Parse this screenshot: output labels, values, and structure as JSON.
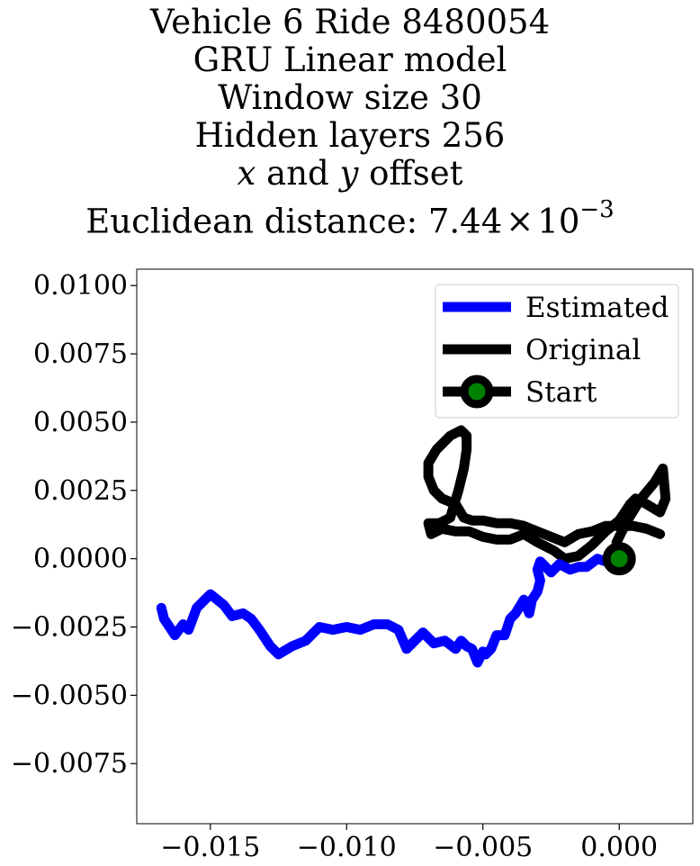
{
  "chart_data": {
    "type": "line",
    "title_lines": [
      "Vehicle 6 Ride 8480054",
      "GRU Linear model",
      "Window size 30",
      "Hidden layers 256"
    ],
    "offset_line": {
      "x": "x",
      "and": "and",
      "y": "y",
      "rest": "offset"
    },
    "distance_line": {
      "prefix": "Euclidean distance: ",
      "mantissa": "7.44",
      "times": "×",
      "base": "10",
      "exponent": "−3"
    },
    "xlabel": "",
    "ylabel": "",
    "xlim": [
      -0.0177,
      0.0027
    ],
    "ylim": [
      -0.0097,
      0.0106
    ],
    "xticks": [
      {
        "value": -0.015,
        "label": "−0.015"
      },
      {
        "value": -0.01,
        "label": "−0.010"
      },
      {
        "value": -0.005,
        "label": "−0.005"
      },
      {
        "value": 0.0,
        "label": "0.000"
      }
    ],
    "yticks": [
      {
        "value": 0.01,
        "label": "0.0100"
      },
      {
        "value": 0.0075,
        "label": "0.0075"
      },
      {
        "value": 0.005,
        "label": "0.0050"
      },
      {
        "value": 0.0025,
        "label": "0.0025"
      },
      {
        "value": 0.0,
        "label": "0.0000"
      },
      {
        "value": -0.0025,
        "label": "−0.0025"
      },
      {
        "value": -0.005,
        "label": "−0.0050"
      },
      {
        "value": -0.0075,
        "label": "−0.0075"
      }
    ],
    "grid": false,
    "legend_position": "top-right",
    "series": [
      {
        "name": "Estimated",
        "color": "#0000ff",
        "x": [
          0.0,
          -0.0005,
          -0.0008,
          -0.0012,
          -0.0015,
          -0.0018,
          -0.0022,
          -0.0025,
          -0.0029,
          -0.003,
          -0.0029,
          -0.003,
          -0.0032,
          -0.0033,
          -0.0035,
          -0.0038,
          -0.004,
          -0.0042,
          -0.0045,
          -0.0047,
          -0.0049,
          -0.005,
          -0.0052,
          -0.0054,
          -0.0056,
          -0.0058,
          -0.006,
          -0.0064,
          -0.0068,
          -0.0072,
          -0.0075,
          -0.0078,
          -0.0081,
          -0.0085,
          -0.009,
          -0.0095,
          -0.01,
          -0.0105,
          -0.011,
          -0.0115,
          -0.012,
          -0.0125,
          -0.0128,
          -0.0132,
          -0.0135,
          -0.0138,
          -0.0142,
          -0.0145,
          -0.015,
          -0.0152,
          -0.0155,
          -0.0158,
          -0.016,
          -0.0163,
          -0.0165,
          -0.0167,
          -0.0168
        ],
        "y": [
          0.0,
          -0.0001,
          0.0,
          -0.0003,
          -0.0003,
          -0.0004,
          -0.0002,
          -0.0005,
          -0.0001,
          -0.0004,
          -0.0008,
          -0.0012,
          -0.0015,
          -0.002,
          -0.0015,
          -0.002,
          -0.0022,
          -0.0028,
          -0.0028,
          -0.0033,
          -0.0035,
          -0.0034,
          -0.0038,
          -0.0033,
          -0.0032,
          -0.003,
          -0.0033,
          -0.003,
          -0.0031,
          -0.0027,
          -0.003,
          -0.0033,
          -0.0026,
          -0.0024,
          -0.0024,
          -0.0026,
          -0.0025,
          -0.0026,
          -0.0025,
          -0.003,
          -0.0032,
          -0.0035,
          -0.0032,
          -0.0026,
          -0.0022,
          -0.002,
          -0.0021,
          -0.0017,
          -0.0013,
          -0.0015,
          -0.0018,
          -0.0026,
          -0.0024,
          -0.0028,
          -0.0025,
          -0.0022,
          -0.0018
        ]
      },
      {
        "name": "Original",
        "color": "#000000",
        "x": [
          0.0,
          -0.0001,
          0.0003,
          0.0008,
          0.0013,
          0.0016,
          0.0017,
          0.0015,
          0.001,
          0.0006,
          0.0004,
          0.0002,
          0.0,
          -0.0005,
          -0.001,
          -0.0015,
          -0.002,
          -0.0024,
          -0.003,
          -0.0035,
          -0.004,
          -0.0045,
          -0.005,
          -0.0055,
          -0.006,
          -0.0065,
          -0.0069,
          -0.007,
          -0.0066,
          -0.0062,
          -0.0059,
          -0.0057,
          -0.0056,
          -0.0056,
          -0.0058,
          -0.0062,
          -0.0067,
          -0.007,
          -0.007,
          -0.0068,
          -0.0065,
          -0.006,
          -0.0057,
          -0.0054,
          -0.005,
          -0.0045,
          -0.004,
          -0.0035,
          -0.003,
          -0.0025,
          -0.002,
          -0.0015,
          -0.001,
          -0.0005,
          0.0,
          0.0005,
          0.001,
          0.0015
        ],
        "y": [
          0.0,
          0.0006,
          0.0014,
          0.0022,
          0.0028,
          0.0033,
          0.0022,
          0.0017,
          0.002,
          0.0022,
          0.002,
          0.0017,
          0.0014,
          0.001,
          0.0005,
          0.0001,
          0.0,
          0.0003,
          0.0006,
          0.0009,
          0.0007,
          0.0007,
          0.0008,
          0.001,
          0.001,
          0.0011,
          0.0009,
          0.0013,
          0.0013,
          0.0015,
          0.0025,
          0.0033,
          0.004,
          0.0045,
          0.0047,
          0.0045,
          0.004,
          0.0035,
          0.003,
          0.0025,
          0.0022,
          0.002,
          0.0015,
          0.0014,
          0.0014,
          0.0013,
          0.0013,
          0.0012,
          0.001,
          0.0008,
          0.0006,
          0.0009,
          0.001,
          0.0012,
          0.0012,
          0.0012,
          0.0011,
          0.0009
        ]
      }
    ],
    "start_point": {
      "name": "Start",
      "x": 0.0,
      "y": 0.0,
      "color": "#008000",
      "edge_color": "#000000"
    }
  }
}
